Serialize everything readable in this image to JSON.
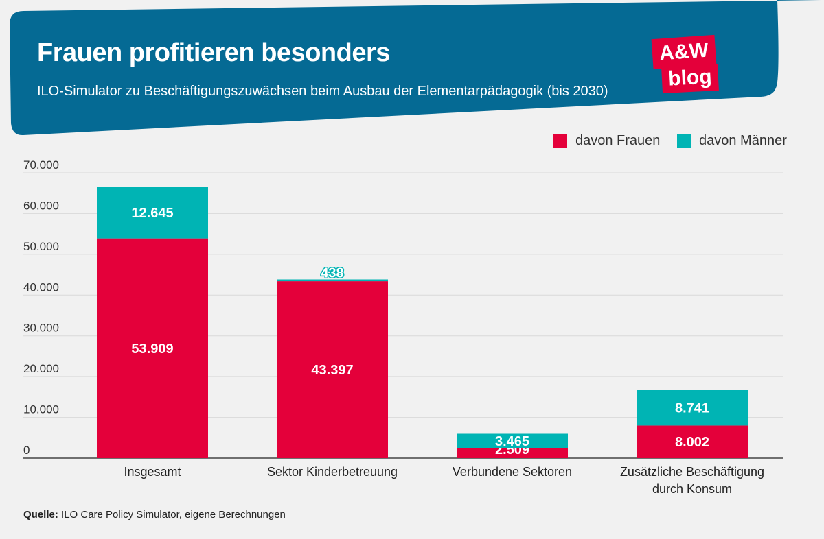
{
  "header": {
    "title": "Frauen profitieren besonders",
    "subtitle": "ILO-Simulator zu Beschäftigungszuwächsen beim Ausbau der Elementarpädagogik (bis 2030)",
    "logo_line1": "A&W",
    "logo_line2": "blog"
  },
  "legend": {
    "frauen": "davon Frauen",
    "maenner": "davon Männer"
  },
  "colors": {
    "banner": "#056a94",
    "frauen": "#e4003a",
    "maenner": "#00b4b4",
    "logo": "#e4003a"
  },
  "source": {
    "label": "Quelle:",
    "text": "ILO Care Policy Simulator, eigene Berechnungen"
  },
  "chart_data": {
    "type": "bar",
    "stacked": true,
    "title": "Frauen profitieren besonders",
    "categories": [
      [
        "Insgesamt"
      ],
      [
        "Sektor Kinderbetreuung"
      ],
      [
        "Verbundene Sektoren"
      ],
      [
        "Zusätzliche Beschäftigung",
        "durch Konsum"
      ]
    ],
    "series": [
      {
        "name": "davon Frauen",
        "values": [
          53909,
          43397,
          2509,
          8002
        ],
        "labels": [
          "53.909",
          "43.397",
          "2.509",
          "8.002"
        ]
      },
      {
        "name": "davon Männer",
        "values": [
          12645,
          438,
          3465,
          8741
        ],
        "labels": [
          "12.645",
          "438",
          "3.465",
          "8.741"
        ]
      }
    ],
    "ylim": [
      0,
      70000
    ],
    "yticks": [
      0,
      10000,
      20000,
      30000,
      40000,
      50000,
      60000,
      70000
    ],
    "ytick_labels": [
      "0",
      "10.000",
      "20.000",
      "30.000",
      "40.000",
      "50.000",
      "60.000",
      "70.000"
    ],
    "grid": true,
    "legend_position": "top-right"
  }
}
